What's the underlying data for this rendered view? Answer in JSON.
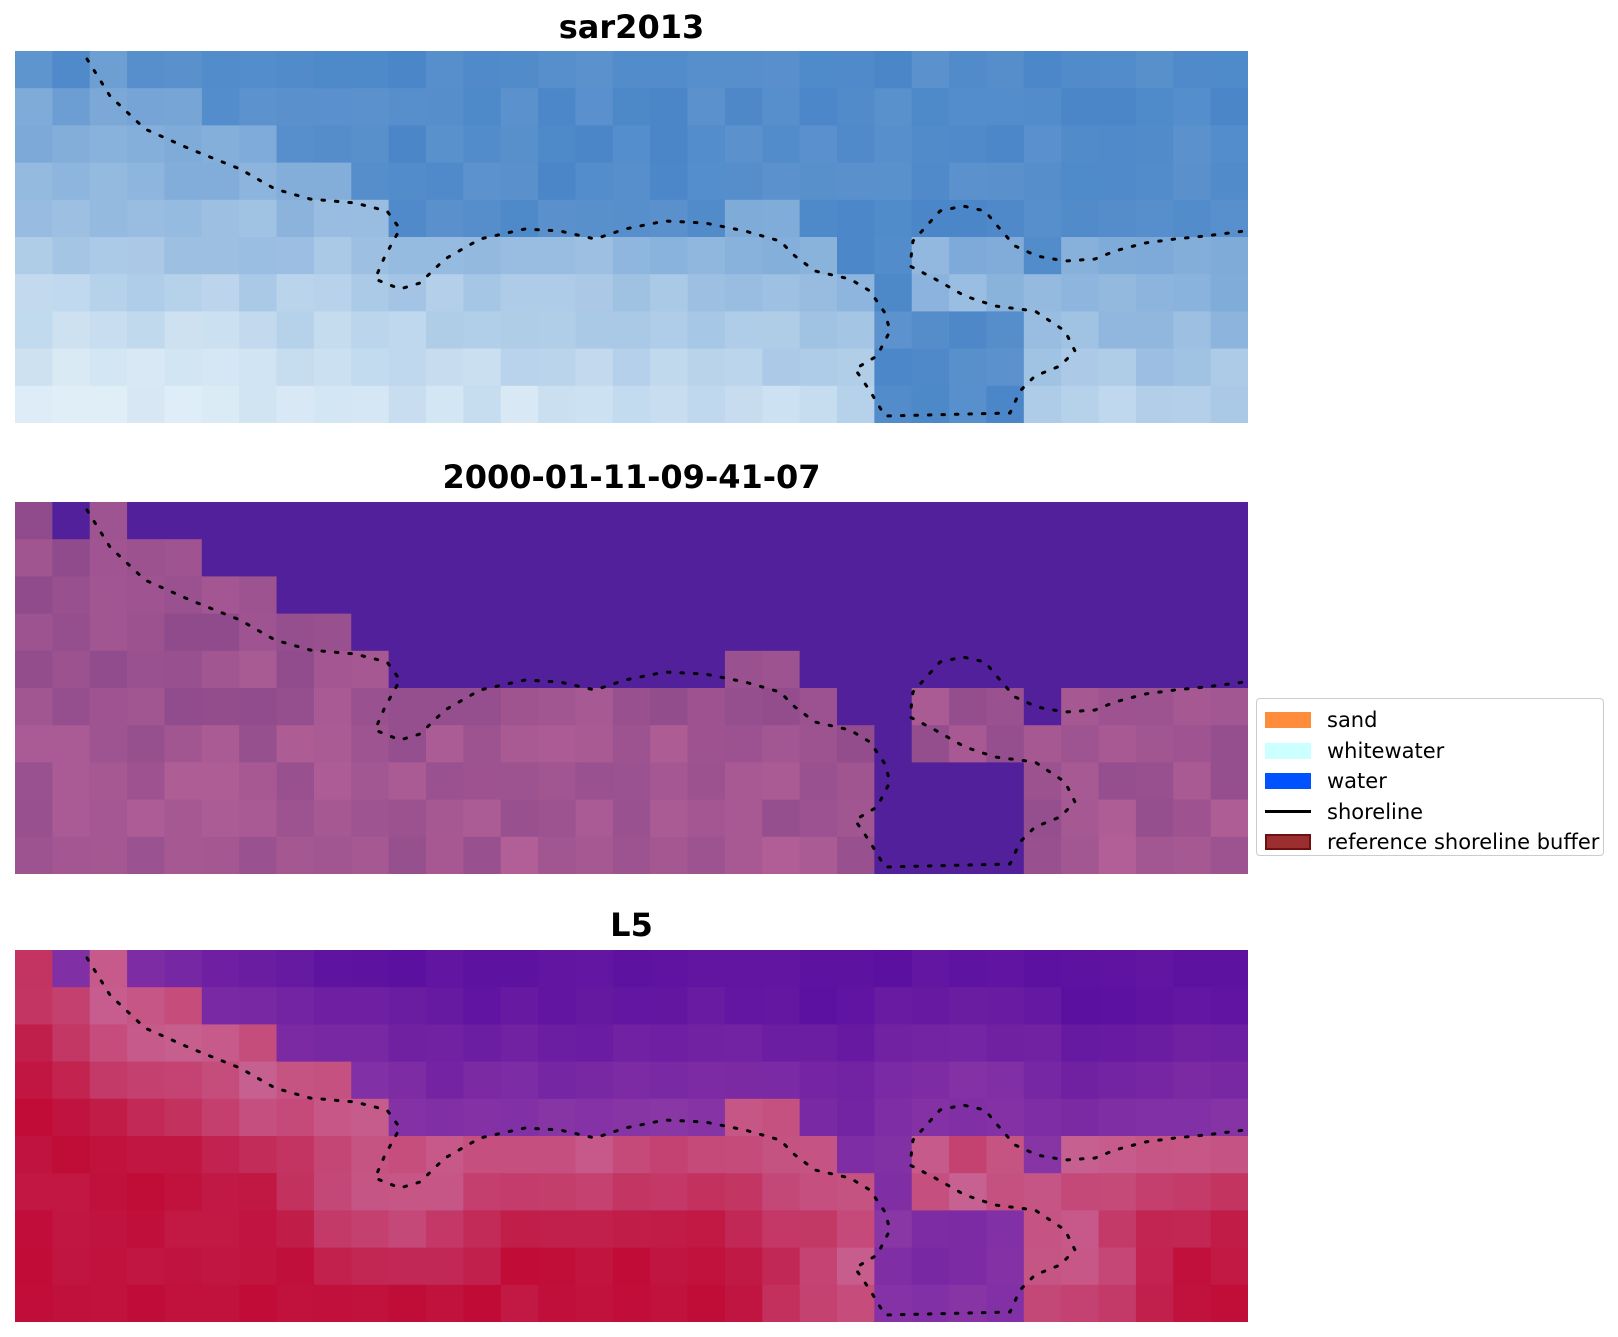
{
  "panels": [
    {
      "title": "sar2013",
      "style": "sar"
    },
    {
      "title": "2000-01-11-09-41-07",
      "style": "class"
    },
    {
      "title": "L5",
      "style": "index"
    }
  ],
  "legend": {
    "items": [
      {
        "label": "sand",
        "kind": "patch",
        "color": "#ff8c3a",
        "border": "#ff8c3a"
      },
      {
        "label": "whitewater",
        "kind": "patch",
        "color": "#ccffff",
        "border": "#ccffff"
      },
      {
        "label": "water",
        "kind": "patch",
        "color": "#0052ff",
        "border": "#0052ff"
      },
      {
        "label": "shoreline",
        "kind": "line",
        "color": "#000000"
      },
      {
        "label": "reference shoreline buffer",
        "kind": "patch",
        "color": "#9b2f2f",
        "border": "#6e1010"
      }
    ]
  },
  "colors": {
    "sar_base": "#4a86c8",
    "sar_light": "#dfeef7",
    "water_purple": "#52209a",
    "land_mauve": "#8f4b8c",
    "land_pink": "#c76b9c",
    "index_red": "#c00a35",
    "index_purple": "#5b10a0",
    "shoreline_dots": "#000000"
  }
}
